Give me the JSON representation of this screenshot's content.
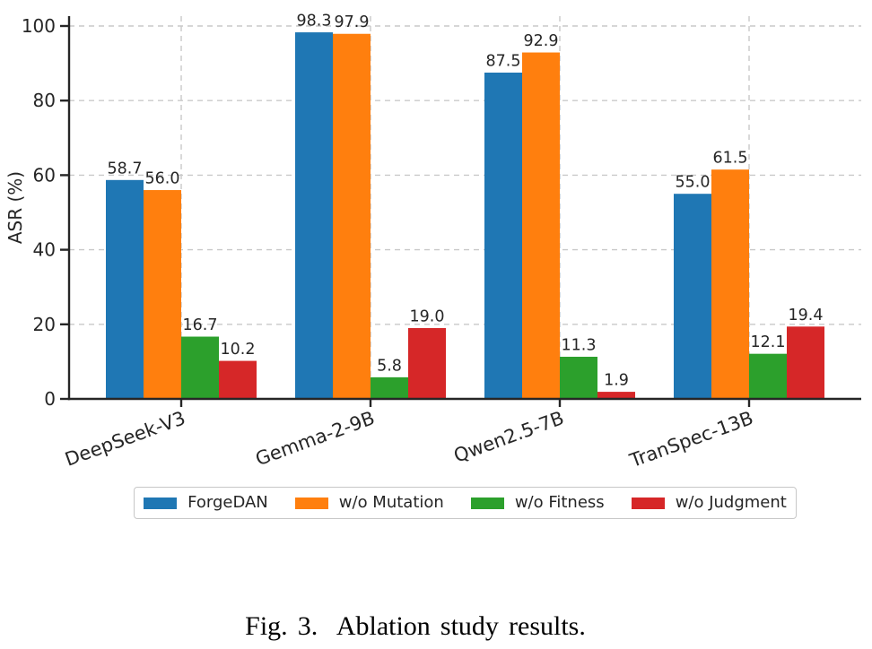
{
  "figure": {
    "caption": "Fig. 3.  Ablation study results."
  },
  "chart_data": {
    "type": "bar",
    "title": "",
    "xlabel": "",
    "ylabel": "ASR (%)",
    "ylim": [
      0,
      105
    ],
    "yticks": [
      0,
      20,
      40,
      60,
      80,
      100
    ],
    "grid": "both, dashed",
    "legend_position": "lower center, outside axes, horizontal",
    "categories": [
      "DeepSeek-V3",
      "Gemma-2-9B",
      "Qwen2.5-7B",
      "TranSpec-13B"
    ],
    "series": [
      {
        "name": "ForgeDAN",
        "color": "#1f77b4",
        "values": [
          58.7,
          98.3,
          87.5,
          55.0
        ]
      },
      {
        "name": "w/o Mutation",
        "color": "#ff7f0e",
        "values": [
          56.0,
          97.9,
          92.9,
          61.5
        ]
      },
      {
        "name": "w/o Fitness",
        "color": "#2ca02c",
        "values": [
          16.7,
          5.8,
          11.3,
          12.1
        ]
      },
      {
        "name": "w/o Judgment",
        "color": "#d62728",
        "values": [
          10.2,
          19.0,
          1.9,
          19.4
        ]
      }
    ]
  }
}
